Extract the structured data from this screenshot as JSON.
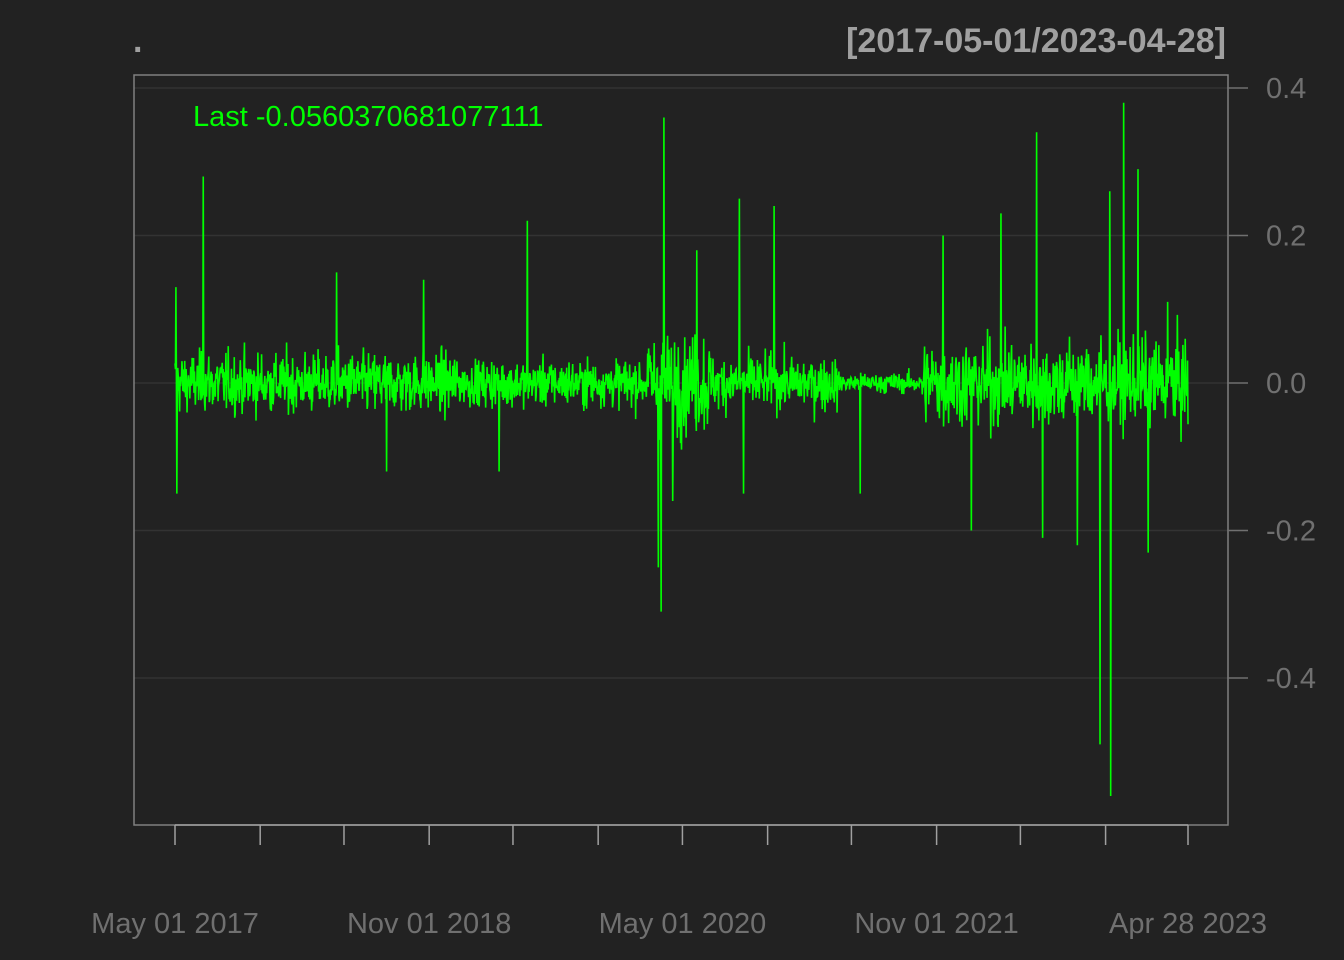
{
  "colors": {
    "background": "#222222",
    "series": "#00ff00",
    "axis_text": "#707070",
    "title_text": "#a0a0a0",
    "grid": "#333333",
    "frame": "#808080",
    "tick": "#a0a0a0"
  },
  "chart_data": {
    "type": "line",
    "title": ".",
    "date_range_label": "[2017-05-01/2023-04-28]",
    "last_label": "Last -0.0560370681077111",
    "x_start": "2017-05-01",
    "x_end": "2023-04-28",
    "ylim": [
      -0.6,
      0.42
    ],
    "y_ticks": [
      0.4,
      0.2,
      0.0,
      -0.2,
      -0.4
    ],
    "y_tick_labels": [
      "0.4",
      "0.2",
      "0.0",
      "-0.2",
      "-0.4"
    ],
    "x_tick_dates": [
      "2017-05-01",
      "2017-11-01",
      "2018-05-01",
      "2018-11-01",
      "2019-05-01",
      "2019-11-01",
      "2020-05-01",
      "2020-11-01",
      "2021-05-01",
      "2021-11-01",
      "2022-05-01",
      "2022-11-01",
      "2023-04-28"
    ],
    "x_label_dates": [
      "2017-05-01",
      "2018-11-01",
      "2020-05-01",
      "2021-11-01",
      "2023-04-28"
    ],
    "x_labels": [
      "May 01 2017",
      "Nov 01 2018",
      "May 01 2020",
      "Nov 01 2021",
      "Apr 28 2023"
    ],
    "grid": true,
    "series": [
      {
        "values_note_free": true,
        "spikes": [
          {
            "date": "2017-05-03",
            "value": 0.13
          },
          {
            "date": "2017-05-05",
            "value": -0.15
          },
          {
            "date": "2017-07-01",
            "value": 0.28
          },
          {
            "date": "2018-04-15",
            "value": 0.15
          },
          {
            "date": "2018-10-20",
            "value": 0.14
          },
          {
            "date": "2018-08-01",
            "value": -0.12
          },
          {
            "date": "2019-04-01",
            "value": -0.12
          },
          {
            "date": "2019-06-01",
            "value": 0.22
          },
          {
            "date": "2020-03-10",
            "value": -0.25
          },
          {
            "date": "2020-03-16",
            "value": -0.31
          },
          {
            "date": "2020-03-22",
            "value": 0.36
          },
          {
            "date": "2020-04-10",
            "value": -0.16
          },
          {
            "date": "2020-06-01",
            "value": 0.18
          },
          {
            "date": "2020-09-01",
            "value": 0.25
          },
          {
            "date": "2020-09-10",
            "value": -0.15
          },
          {
            "date": "2020-11-15",
            "value": 0.24
          },
          {
            "date": "2021-05-20",
            "value": -0.15
          },
          {
            "date": "2021-11-15",
            "value": 0.2
          },
          {
            "date": "2022-01-15",
            "value": -0.2
          },
          {
            "date": "2022-03-20",
            "value": 0.23
          },
          {
            "date": "2022-06-05",
            "value": 0.34
          },
          {
            "date": "2022-06-18",
            "value": -0.21
          },
          {
            "date": "2022-09-01",
            "value": -0.22
          },
          {
            "date": "2022-10-20",
            "value": -0.49
          },
          {
            "date": "2022-11-10",
            "value": 0.26
          },
          {
            "date": "2022-11-12",
            "value": -0.56
          },
          {
            "date": "2022-12-10",
            "value": 0.38
          },
          {
            "date": "2023-01-10",
            "value": 0.29
          },
          {
            "date": "2023-02-01",
            "value": -0.23
          },
          {
            "date": "2023-03-15",
            "value": 0.11
          },
          {
            "date": "2023-04-28",
            "value": -0.056
          }
        ],
        "volatility_regimes": [
          {
            "from": "2017-05-01",
            "to": "2018-12-31",
            "level": 0.045
          },
          {
            "from": "2019-01-01",
            "to": "2020-02-15",
            "level": 0.035
          },
          {
            "from": "2020-02-15",
            "to": "2020-06-30",
            "level": 0.075
          },
          {
            "from": "2020-07-01",
            "to": "2021-03-31",
            "level": 0.04
          },
          {
            "from": "2021-04-01",
            "to": "2021-09-30",
            "level": 0.015
          },
          {
            "from": "2021-10-01",
            "to": "2023-04-28",
            "level": 0.065
          }
        ]
      }
    ]
  }
}
